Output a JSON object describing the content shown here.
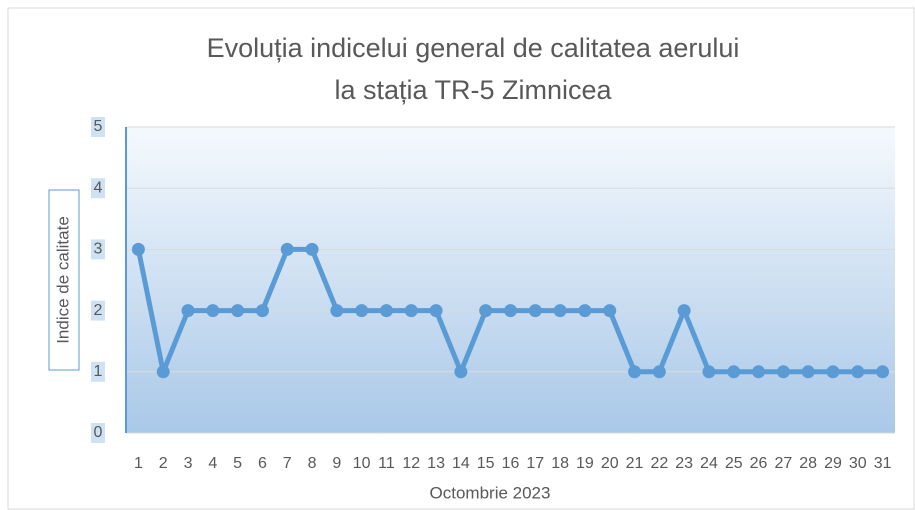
{
  "chart_data": {
    "type": "line",
    "title": [
      "Evoluția indicelui general de calitatea aerului",
      "la stația TR-5  Zimnicea"
    ],
    "x_label": "Octombrie 2023",
    "y_label": "Indice de calitate",
    "categories": [
      "1",
      "2",
      "3",
      "4",
      "5",
      "6",
      "7",
      "8",
      "9",
      "10",
      "11",
      "12",
      "13",
      "14",
      "15",
      "16",
      "17",
      "18",
      "19",
      "20",
      "21",
      "22",
      "23",
      "24",
      "25",
      "26",
      "27",
      "28",
      "29",
      "30",
      "31"
    ],
    "values": [
      3,
      1,
      2,
      2,
      2,
      2,
      3,
      3,
      2,
      2,
      2,
      2,
      2,
      1,
      2,
      2,
      2,
      2,
      2,
      2,
      1,
      1,
      2,
      1,
      1,
      1,
      1,
      1,
      1,
      1,
      1
    ],
    "color": "#5b9bd5",
    "ylim": [
      0,
      5
    ],
    "yticks": [
      0,
      1,
      2,
      3,
      4,
      5
    ],
    "grid": true
  }
}
